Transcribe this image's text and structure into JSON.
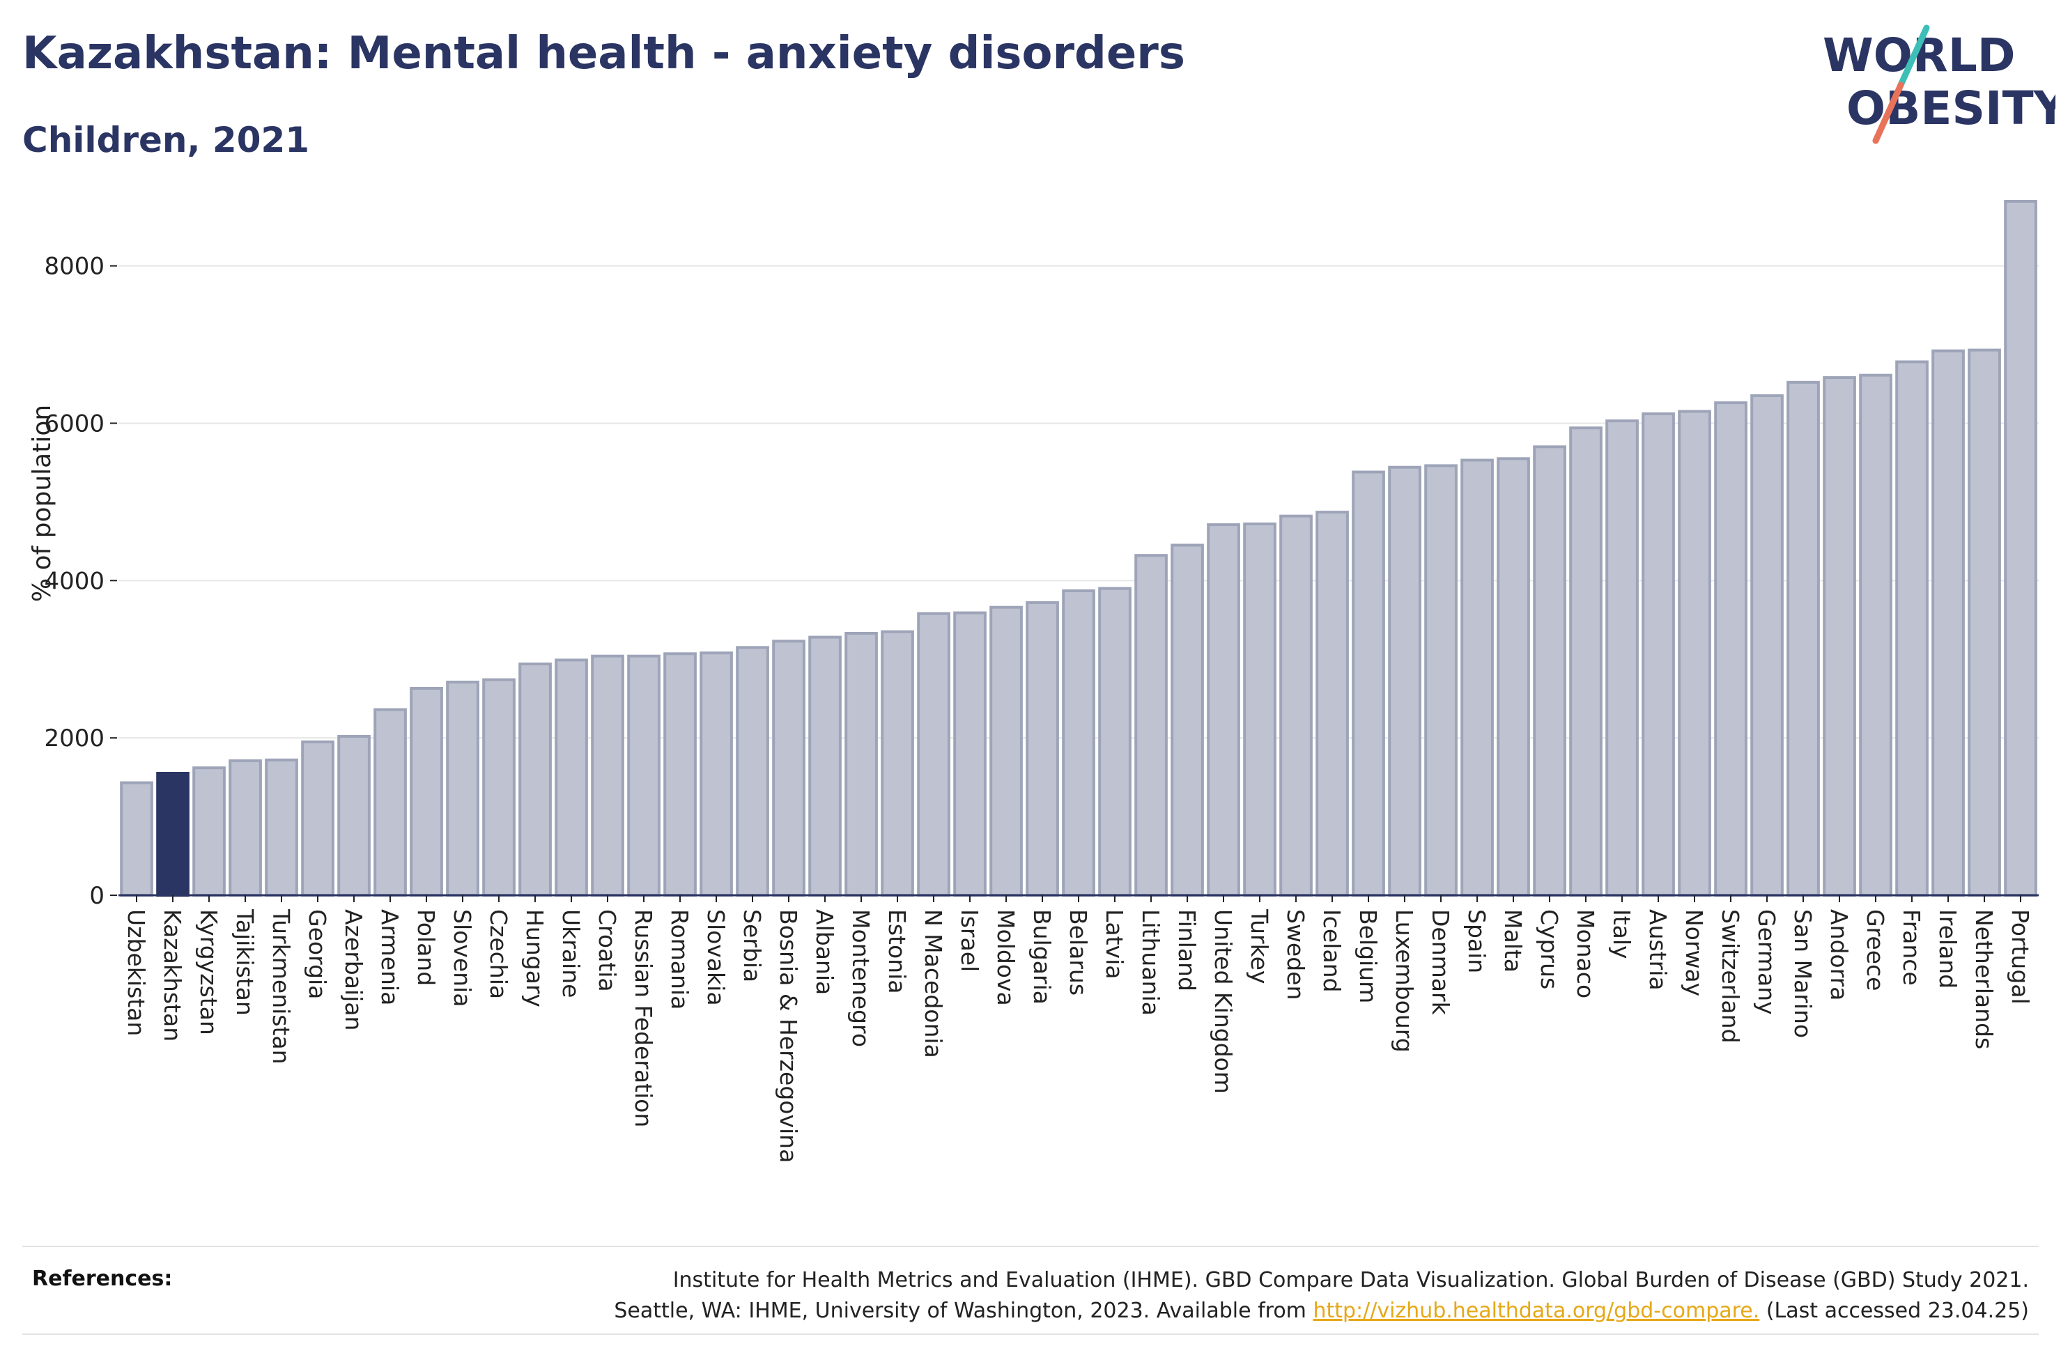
{
  "header": {
    "title": "Kazakhstan: Mental health - anxiety disorders",
    "subtitle": "Children, 2021"
  },
  "logo": {
    "line1": "WORLD",
    "line2": "OBESITY",
    "colors": {
      "text": "#2b3563",
      "slash_top": "#3dbfb8",
      "slash_bottom": "#e8735a"
    }
  },
  "colors": {
    "bar": "#bfc3d1",
    "bar_stroke": "#9ea4b8",
    "highlight": "#2b3563"
  },
  "chart_data": {
    "type": "bar",
    "xlabel": "",
    "ylabel": "% of population",
    "ylim": [
      0,
      8900
    ],
    "yticks": [
      0,
      2000,
      4000,
      6000,
      8000
    ],
    "grid": true,
    "legend": "none",
    "highlight": "Kazakhstan",
    "categories": [
      "Uzbekistan",
      "Kazakhstan",
      "Kyrgyzstan",
      "Tajikistan",
      "Turkmenistan",
      "Georgia",
      "Azerbaijan",
      "Armenia",
      "Poland",
      "Slovenia",
      "Czechia",
      "Hungary",
      "Ukraine",
      "Croatia",
      "Russian Federation",
      "Romania",
      "Slovakia",
      "Serbia",
      "Bosnia & Herzegovina",
      "Albania",
      "Montenegro",
      "Estonia",
      "N Macedonia",
      "Israel",
      "Moldova",
      "Bulgaria",
      "Belarus",
      "Latvia",
      "Lithuania",
      "Finland",
      "United Kingdom",
      "Turkey",
      "Sweden",
      "Iceland",
      "Belgium",
      "Luxembourg",
      "Denmark",
      "Spain",
      "Malta",
      "Cyprus",
      "Monaco",
      "Italy",
      "Austria",
      "Norway",
      "Switzerland",
      "Germany",
      "San Marino",
      "Andorra",
      "Greece",
      "France",
      "Ireland",
      "Netherlands",
      "Portugal"
    ],
    "values": [
      1430,
      1550,
      1620,
      1710,
      1720,
      1950,
      2020,
      2360,
      2630,
      2710,
      2740,
      2940,
      2990,
      3040,
      3040,
      3070,
      3080,
      3150,
      3230,
      3280,
      3330,
      3350,
      3580,
      3590,
      3660,
      3720,
      3870,
      3900,
      4320,
      4450,
      4710,
      4720,
      4820,
      4870,
      5380,
      5440,
      5460,
      5530,
      5550,
      5700,
      5940,
      6030,
      6120,
      6150,
      6260,
      6350,
      6520,
      6580,
      6610,
      6780,
      6920,
      6930,
      8820
    ]
  },
  "references": {
    "label": "References:",
    "line1": "Institute for Health Metrics and Evaluation (IHME). GBD Compare Data Visualization. Global Burden of Disease (GBD) Study 2021.",
    "line2_prefix": "Seattle, WA: IHME, University of Washington, 2023. Available from ",
    "link": "http://vizhub.healthdata.org/gbd-compare.",
    "line2_suffix": " (Last accessed 23.04.25)"
  }
}
